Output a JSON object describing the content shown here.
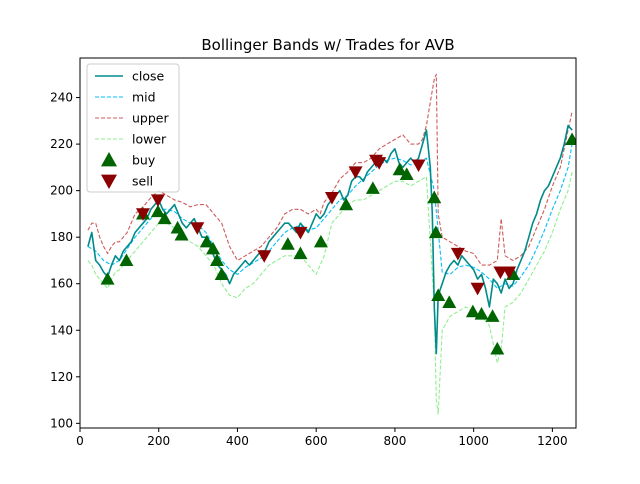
{
  "chart_data": {
    "type": "line",
    "title": "Bollinger Bands w/ Trades for AVB",
    "xlabel": "",
    "ylabel": "",
    "xlim": [
      0,
      1260
    ],
    "ylim": [
      98,
      257
    ],
    "x_ticks": [
      0,
      200,
      400,
      600,
      800,
      1000,
      1200
    ],
    "y_ticks": [
      100,
      120,
      140,
      160,
      180,
      200,
      220,
      240
    ],
    "grid": false,
    "legend_position": "top-left",
    "legend": [
      {
        "label": "close",
        "kind": "solid-line",
        "color": "#008B8B"
      },
      {
        "label": "mid",
        "kind": "dashed-line",
        "color": "#00BFFF"
      },
      {
        "label": "upper",
        "kind": "dashed-line",
        "color": "#CD5C5C"
      },
      {
        "label": "lower",
        "kind": "dashed-line",
        "color": "#90EE90"
      },
      {
        "label": "buy",
        "kind": "triangle-up",
        "color": "#006400"
      },
      {
        "label": "sell",
        "kind": "triangle-down",
        "color": "#8B0000"
      }
    ],
    "series": [
      {
        "name": "close",
        "style": "solid",
        "color": "#008B8B",
        "x": [
          20,
          30,
          40,
          50,
          60,
          70,
          80,
          90,
          100,
          110,
          120,
          130,
          140,
          150,
          160,
          170,
          180,
          190,
          200,
          210,
          220,
          230,
          240,
          250,
          260,
          270,
          280,
          290,
          300,
          310,
          320,
          330,
          340,
          350,
          360,
          370,
          380,
          390,
          400,
          410,
          420,
          430,
          440,
          450,
          460,
          470,
          480,
          490,
          500,
          510,
          520,
          530,
          540,
          550,
          560,
          570,
          580,
          590,
          600,
          610,
          620,
          630,
          640,
          650,
          660,
          670,
          680,
          690,
          700,
          710,
          720,
          730,
          740,
          750,
          760,
          770,
          780,
          790,
          800,
          810,
          820,
          830,
          840,
          850,
          860,
          870,
          880,
          890,
          895,
          900,
          905,
          910,
          920,
          930,
          940,
          950,
          960,
          970,
          980,
          990,
          1000,
          1010,
          1020,
          1030,
          1040,
          1050,
          1060,
          1070,
          1080,
          1090,
          1100,
          1110,
          1120,
          1130,
          1140,
          1150,
          1160,
          1170,
          1180,
          1190,
          1200,
          1210,
          1220,
          1230,
          1240,
          1250
        ],
        "y": [
          176,
          182,
          170,
          168,
          165,
          163,
          168,
          172,
          170,
          174,
          176,
          178,
          182,
          184,
          186,
          188,
          192,
          194,
          196,
          192,
          190,
          192,
          194,
          190,
          186,
          184,
          186,
          188,
          184,
          180,
          180,
          176,
          172,
          168,
          166,
          164,
          160,
          164,
          166,
          168,
          170,
          168,
          170,
          172,
          174,
          174,
          178,
          180,
          182,
          184,
          186,
          186,
          184,
          182,
          186,
          184,
          182,
          186,
          190,
          188,
          190,
          194,
          196,
          198,
          200,
          196,
          198,
          204,
          206,
          206,
          204,
          208,
          210,
          212,
          214,
          214,
          212,
          216,
          218,
          212,
          210,
          212,
          214,
          212,
          214,
          220,
          226,
          210,
          190,
          150,
          130,
          155,
          160,
          165,
          168,
          170,
          168,
          172,
          170,
          168,
          166,
          162,
          164,
          158,
          150,
          162,
          160,
          156,
          162,
          158,
          160,
          166,
          170,
          174,
          180,
          186,
          190,
          196,
          200,
          202,
          206,
          210,
          214,
          220,
          228,
          226
        ]
      },
      {
        "name": "mid",
        "style": "dashed",
        "color": "#00BFFF",
        "x": [
          20,
          40,
          60,
          80,
          100,
          120,
          140,
          160,
          180,
          200,
          220,
          240,
          260,
          280,
          300,
          320,
          340,
          360,
          380,
          400,
          420,
          440,
          460,
          480,
          500,
          520,
          540,
          560,
          580,
          600,
          620,
          640,
          660,
          680,
          700,
          720,
          740,
          760,
          780,
          800,
          820,
          840,
          860,
          880,
          900,
          920,
          940,
          960,
          980,
          1000,
          1020,
          1040,
          1060,
          1080,
          1100,
          1120,
          1140,
          1160,
          1180,
          1200,
          1220,
          1240,
          1250
        ],
        "y": [
          176,
          174,
          170,
          168,
          170,
          175,
          180,
          184,
          188,
          192,
          192,
          191,
          188,
          186,
          185,
          182,
          176,
          170,
          166,
          164,
          167,
          169,
          171,
          174,
          178,
          182,
          184,
          185,
          183,
          184,
          188,
          192,
          196,
          198,
          202,
          205,
          208,
          211,
          213,
          214,
          213,
          211,
          212,
          214,
          200,
          165,
          164,
          167,
          168,
          167,
          165,
          162,
          158,
          160,
          159,
          163,
          168,
          175,
          183,
          192,
          200,
          210,
          220
        ]
      },
      {
        "name": "upper",
        "style": "dashed",
        "color": "#CD5C5C",
        "x": [
          20,
          30,
          40,
          50,
          60,
          70,
          80,
          90,
          100,
          120,
          140,
          160,
          180,
          200,
          220,
          240,
          260,
          280,
          300,
          320,
          340,
          360,
          380,
          400,
          420,
          440,
          460,
          480,
          500,
          520,
          540,
          560,
          580,
          600,
          610,
          620,
          640,
          660,
          680,
          700,
          720,
          740,
          760,
          780,
          800,
          820,
          840,
          860,
          870,
          880,
          890,
          900,
          905,
          910,
          920,
          940,
          960,
          980,
          1000,
          1020,
          1040,
          1060,
          1070,
          1080,
          1100,
          1120,
          1140,
          1160,
          1180,
          1200,
          1220,
          1240,
          1250
        ],
        "y": [
          183,
          186,
          186,
          180,
          176,
          173,
          176,
          178,
          178,
          182,
          190,
          193,
          197,
          200,
          198,
          196,
          195,
          193,
          194,
          194,
          190,
          186,
          176,
          170,
          172,
          174,
          176,
          180,
          184,
          190,
          192,
          192,
          190,
          192,
          190,
          195,
          199,
          205,
          208,
          212,
          212,
          214,
          218,
          220,
          222,
          224,
          220,
          220,
          222,
          228,
          238,
          248,
          250,
          190,
          180,
          178,
          176,
          174,
          173,
          168,
          168,
          170,
          188,
          172,
          170,
          172,
          176,
          184,
          192,
          202,
          210,
          226,
          234
        ]
      },
      {
        "name": "lower",
        "style": "dashed",
        "color": "#90EE90",
        "x": [
          20,
          30,
          40,
          50,
          60,
          70,
          80,
          90,
          100,
          120,
          140,
          160,
          180,
          200,
          220,
          240,
          260,
          280,
          300,
          320,
          340,
          360,
          380,
          400,
          420,
          440,
          460,
          480,
          500,
          520,
          540,
          560,
          580,
          600,
          620,
          640,
          660,
          680,
          700,
          720,
          740,
          760,
          780,
          800,
          820,
          840,
          860,
          880,
          900,
          905,
          910,
          920,
          940,
          960,
          980,
          1000,
          1020,
          1040,
          1060,
          1070,
          1080,
          1100,
          1120,
          1140,
          1160,
          1180,
          1200,
          1220,
          1240,
          1250
        ],
        "y": [
          170,
          168,
          164,
          162,
          160,
          158,
          162,
          165,
          166,
          170,
          174,
          178,
          182,
          186,
          186,
          184,
          180,
          178,
          176,
          172,
          168,
          160,
          155,
          154,
          158,
          160,
          164,
          168,
          170,
          172,
          172,
          172,
          168,
          164,
          172,
          186,
          190,
          194,
          196,
          196,
          198,
          200,
          202,
          204,
          204,
          202,
          204,
          206,
          150,
          110,
          104,
          140,
          146,
          148,
          150,
          148,
          146,
          142,
          126,
          132,
          150,
          152,
          156,
          162,
          168,
          174,
          182,
          192,
          200,
          208
        ]
      }
    ],
    "markers": {
      "buy": {
        "shape": "triangle-up",
        "color": "#006400",
        "x": [
          70,
          118,
          160,
          198,
          215,
          248,
          258,
          322,
          338,
          348,
          360,
          528,
          560,
          612,
          676,
          744,
          812,
          830,
          900,
          904,
          910,
          938,
          998,
          1020,
          1048,
          1060,
          1100,
          1250
        ],
        "y": [
          162,
          170,
          190,
          191,
          188,
          184,
          181,
          178,
          175,
          170,
          164,
          177,
          173,
          178,
          194,
          201,
          209,
          207,
          197,
          182,
          155,
          152,
          148,
          147,
          146,
          132,
          164,
          222
        ]
      },
      "sell": {
        "shape": "triangle-down",
        "color": "#8B0000",
        "x": [
          160,
          198,
          298,
          468,
          560,
          640,
          700,
          752,
          760,
          860,
          960,
          1010,
          1068,
          1090
        ],
        "y": [
          190,
          196,
          184,
          172,
          182,
          197,
          208,
          213,
          212,
          211,
          173,
          158,
          165,
          165
        ]
      }
    }
  }
}
